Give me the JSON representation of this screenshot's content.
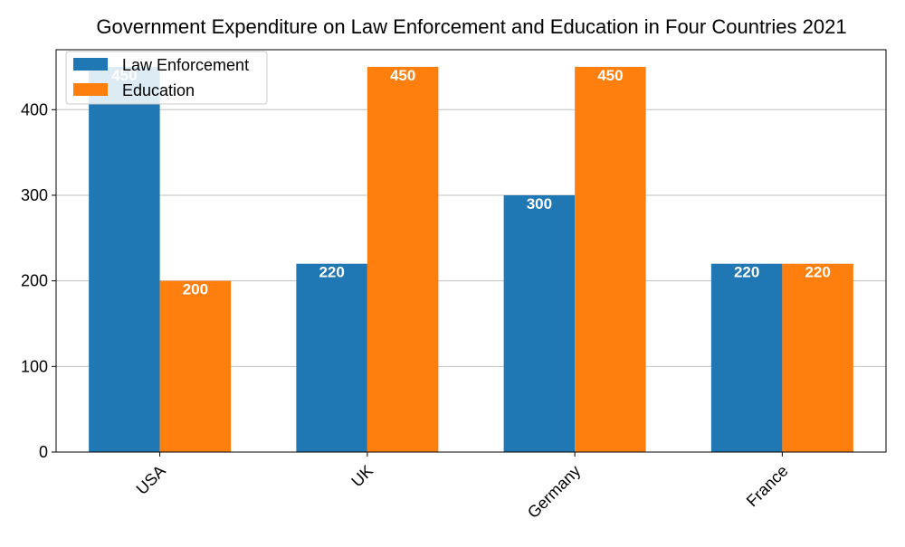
{
  "chart_data": {
    "type": "bar",
    "title": "Government Expenditure on Law Enforcement and Education in Four Countries 2021",
    "xlabel": "",
    "ylabel": "",
    "categories": [
      "USA",
      "UK",
      "Germany",
      "France"
    ],
    "series": [
      {
        "name": "Law Enforcement",
        "values": [
          450,
          220,
          300,
          220
        ],
        "color": "#1f77b4"
      },
      {
        "name": "Education",
        "values": [
          200,
          450,
          450,
          220
        ],
        "color": "#ff7f0e"
      }
    ],
    "ylim": [
      0,
      470
    ],
    "yticks": [
      0,
      100,
      200,
      300,
      400
    ],
    "grid": "y",
    "legend": "top-left",
    "xtick_rotation": 45,
    "value_labels": true
  }
}
